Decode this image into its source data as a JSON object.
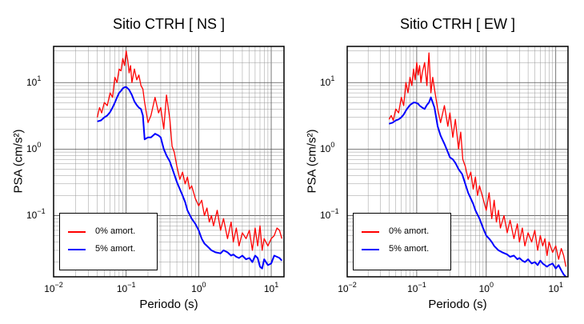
{
  "chart_data": [
    {
      "type": "line",
      "title": "Sitio CTRH [ NS ]",
      "xlabel": "Periodo (s)",
      "ylabel": "PSA (cm/s²)",
      "xscale": "log",
      "yscale": "log",
      "xlim": [
        0.01,
        15
      ],
      "ylim": [
        0.012,
        35
      ],
      "grid": true,
      "legend_position": "bottom-left",
      "x_ticks": [
        {
          "base": "10",
          "exp": "−2",
          "value": 0.01
        },
        {
          "base": "10",
          "exp": "−1",
          "value": 0.1
        },
        {
          "base": "10",
          "exp": "0",
          "value": 1
        },
        {
          "base": "10",
          "exp": "1",
          "value": 10
        }
      ],
      "y_ticks": [
        {
          "base": "10",
          "exp": "−1",
          "value": 0.1
        },
        {
          "base": "10",
          "exp": "0",
          "value": 1
        },
        {
          "base": "10",
          "exp": "1",
          "value": 10
        }
      ],
      "series": [
        {
          "name": "0% amort.",
          "color": "#ff0000",
          "x": [
            0.04,
            0.043,
            0.046,
            0.05,
            0.055,
            0.06,
            0.065,
            0.07,
            0.075,
            0.08,
            0.085,
            0.09,
            0.095,
            0.1,
            0.105,
            0.11,
            0.115,
            0.12,
            0.13,
            0.14,
            0.15,
            0.16,
            0.17,
            0.18,
            0.2,
            0.22,
            0.25,
            0.28,
            0.3,
            0.33,
            0.36,
            0.4,
            0.43,
            0.46,
            0.5,
            0.55,
            0.6,
            0.65,
            0.7,
            0.75,
            0.8,
            0.9,
            1.0,
            1.1,
            1.2,
            1.3,
            1.4,
            1.5,
            1.6,
            1.8,
            2.0,
            2.2,
            2.5,
            2.8,
            3.0,
            3.3,
            3.6,
            4.0,
            4.5,
            5.0,
            5.5,
            6.0,
            6.5,
            7.0,
            7.5,
            8.0,
            9.0,
            10.0,
            11.0,
            12.0,
            13.0,
            14.0
          ],
          "values": [
            3.0,
            4.2,
            3.5,
            5.0,
            4.5,
            7.0,
            6.0,
            12.0,
            10.0,
            16.0,
            15.0,
            23.0,
            18.0,
            30.0,
            22.0,
            14.0,
            18.0,
            10.0,
            16.0,
            11.0,
            13.0,
            9.0,
            8.0,
            5.0,
            2.5,
            3.2,
            6.0,
            3.5,
            4.2,
            2.0,
            6.5,
            2.8,
            1.1,
            0.9,
            0.55,
            0.35,
            0.45,
            0.3,
            0.38,
            0.25,
            0.28,
            0.18,
            0.14,
            0.17,
            0.1,
            0.13,
            0.08,
            0.1,
            0.07,
            0.12,
            0.06,
            0.09,
            0.045,
            0.08,
            0.04,
            0.065,
            0.035,
            0.055,
            0.045,
            0.06,
            0.03,
            0.065,
            0.035,
            0.07,
            0.03,
            0.045,
            0.035,
            0.045,
            0.05,
            0.065,
            0.06,
            0.045
          ]
        },
        {
          "name": "5% amort.",
          "color": "#0000ff",
          "x": [
            0.04,
            0.045,
            0.05,
            0.055,
            0.06,
            0.065,
            0.07,
            0.075,
            0.08,
            0.085,
            0.09,
            0.095,
            0.1,
            0.105,
            0.11,
            0.12,
            0.13,
            0.14,
            0.15,
            0.16,
            0.17,
            0.18,
            0.2,
            0.22,
            0.25,
            0.28,
            0.3,
            0.33,
            0.36,
            0.4,
            0.45,
            0.5,
            0.55,
            0.6,
            0.65,
            0.7,
            0.8,
            0.9,
            1.0,
            1.1,
            1.2,
            1.3,
            1.5,
            1.7,
            2.0,
            2.2,
            2.5,
            2.8,
            3.0,
            3.3,
            3.6,
            4.0,
            4.5,
            5.0,
            5.5,
            6.0,
            6.5,
            7.0,
            7.5,
            8.0,
            9.0,
            10.0,
            11.0,
            12.0,
            13.0,
            14.0
          ],
          "values": [
            2.6,
            2.7,
            3.0,
            3.2,
            3.6,
            4.2,
            5.0,
            6.0,
            7.0,
            7.5,
            8.2,
            8.5,
            8.6,
            8.2,
            7.8,
            6.5,
            5.2,
            4.6,
            4.2,
            4.0,
            3.2,
            1.4,
            1.5,
            1.5,
            1.7,
            1.6,
            1.5,
            1.0,
            0.8,
            0.65,
            0.45,
            0.32,
            0.25,
            0.2,
            0.16,
            0.12,
            0.09,
            0.075,
            0.06,
            0.045,
            0.038,
            0.035,
            0.03,
            0.028,
            0.027,
            0.03,
            0.028,
            0.025,
            0.026,
            0.024,
            0.023,
            0.025,
            0.022,
            0.023,
            0.02,
            0.025,
            0.023,
            0.017,
            0.016,
            0.022,
            0.018,
            0.019,
            0.025,
            0.024,
            0.023,
            0.021
          ]
        }
      ]
    },
    {
      "type": "line",
      "title": "Sitio CTRH [ EW ]",
      "xlabel": "Periodo (s)",
      "ylabel": "PSA (cm/s²)",
      "xscale": "log",
      "yscale": "log",
      "xlim": [
        0.01,
        15
      ],
      "ylim": [
        0.012,
        35
      ],
      "grid": true,
      "legend_position": "bottom-left",
      "x_ticks": [
        {
          "base": "10",
          "exp": "−2",
          "value": 0.01
        },
        {
          "base": "10",
          "exp": "−1",
          "value": 0.1
        },
        {
          "base": "10",
          "exp": "0",
          "value": 1
        },
        {
          "base": "10",
          "exp": "1",
          "value": 10
        }
      ],
      "y_ticks": [
        {
          "base": "10",
          "exp": "−1",
          "value": 0.1
        },
        {
          "base": "10",
          "exp": "0",
          "value": 1
        },
        {
          "base": "10",
          "exp": "1",
          "value": 10
        }
      ],
      "series": [
        {
          "name": "0% amort.",
          "color": "#ff0000",
          "x": [
            0.04,
            0.043,
            0.046,
            0.05,
            0.055,
            0.06,
            0.065,
            0.07,
            0.075,
            0.08,
            0.085,
            0.09,
            0.095,
            0.1,
            0.105,
            0.11,
            0.115,
            0.12,
            0.13,
            0.14,
            0.15,
            0.16,
            0.17,
            0.18,
            0.2,
            0.22,
            0.25,
            0.28,
            0.3,
            0.33,
            0.36,
            0.4,
            0.43,
            0.46,
            0.5,
            0.55,
            0.6,
            0.65,
            0.7,
            0.75,
            0.8,
            0.9,
            1.0,
            1.1,
            1.2,
            1.3,
            1.4,
            1.5,
            1.6,
            1.8,
            2.0,
            2.2,
            2.5,
            2.8,
            3.0,
            3.3,
            3.6,
            4.0,
            4.5,
            5.0,
            5.5,
            6.0,
            6.5,
            7.0,
            7.5,
            8.0,
            9.0,
            10.0,
            11.0,
            12.0,
            13.0,
            14.0
          ],
          "values": [
            2.8,
            3.2,
            2.7,
            4.0,
            3.5,
            6.0,
            4.5,
            10.0,
            7.0,
            12.0,
            9.0,
            16.0,
            11.0,
            20.0,
            13.0,
            18.0,
            10.0,
            14.0,
            20.0,
            9.0,
            28.0,
            7.0,
            12.0,
            8.0,
            4.0,
            2.5,
            4.5,
            2.2,
            3.5,
            1.5,
            2.8,
            1.0,
            1.8,
            0.7,
            0.55,
            0.35,
            0.45,
            0.25,
            0.38,
            0.2,
            0.28,
            0.18,
            0.12,
            0.22,
            0.09,
            0.17,
            0.08,
            0.12,
            0.065,
            0.1,
            0.055,
            0.085,
            0.045,
            0.075,
            0.04,
            0.065,
            0.035,
            0.055,
            0.04,
            0.06,
            0.03,
            0.05,
            0.035,
            0.045,
            0.025,
            0.04,
            0.028,
            0.035,
            0.022,
            0.032,
            0.025,
            0.017
          ]
        },
        {
          "name": "5% amort.",
          "color": "#0000ff",
          "x": [
            0.04,
            0.045,
            0.05,
            0.055,
            0.06,
            0.065,
            0.07,
            0.075,
            0.08,
            0.085,
            0.09,
            0.095,
            0.1,
            0.105,
            0.11,
            0.12,
            0.13,
            0.14,
            0.15,
            0.16,
            0.17,
            0.18,
            0.2,
            0.22,
            0.25,
            0.28,
            0.3,
            0.33,
            0.36,
            0.4,
            0.45,
            0.5,
            0.55,
            0.6,
            0.65,
            0.7,
            0.8,
            0.9,
            1.0,
            1.1,
            1.2,
            1.3,
            1.5,
            1.7,
            2.0,
            2.2,
            2.5,
            2.8,
            3.0,
            3.3,
            3.6,
            4.0,
            4.5,
            5.0,
            5.5,
            6.0,
            6.5,
            7.0,
            7.5,
            8.0,
            9.0,
            10.0,
            11.0,
            12.0,
            13.0,
            14.0
          ],
          "values": [
            2.4,
            2.5,
            2.7,
            2.8,
            3.0,
            3.3,
            3.8,
            4.2,
            4.6,
            4.8,
            5.0,
            5.0,
            4.9,
            4.8,
            4.5,
            4.2,
            4.0,
            4.6,
            5.0,
            6.0,
            5.0,
            4.2,
            2.2,
            1.6,
            1.2,
            0.9,
            0.75,
            0.7,
            0.62,
            0.5,
            0.42,
            0.3,
            0.22,
            0.18,
            0.15,
            0.12,
            0.09,
            0.065,
            0.05,
            0.045,
            0.04,
            0.035,
            0.03,
            0.028,
            0.026,
            0.024,
            0.025,
            0.022,
            0.023,
            0.021,
            0.02,
            0.022,
            0.019,
            0.02,
            0.018,
            0.021,
            0.019,
            0.018,
            0.017,
            0.018,
            0.019,
            0.016,
            0.018,
            0.015,
            0.013,
            0.012
          ]
        }
      ]
    }
  ]
}
